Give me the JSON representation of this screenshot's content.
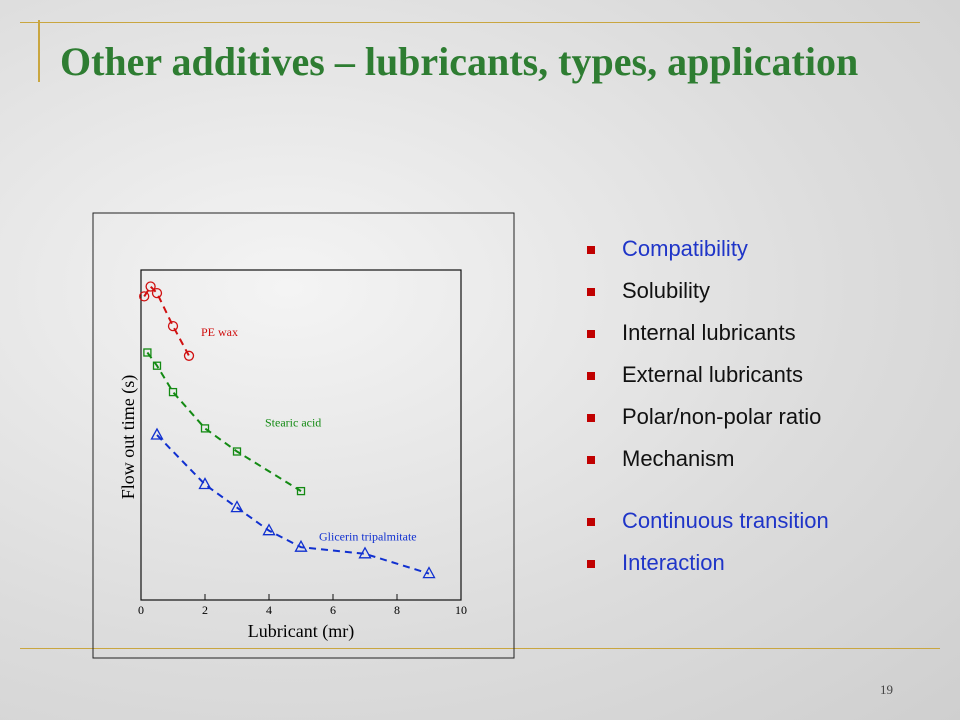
{
  "title": "Other additives – lubricants, types, application",
  "bullets": [
    {
      "text": "Compatibility",
      "color": "#1f35c8"
    },
    {
      "text": "Solubility",
      "color": "#111111"
    },
    {
      "text": "Internal lubricants",
      "color": "#111111"
    },
    {
      "text": "External lubricants",
      "color": "#111111"
    },
    {
      "text": "Polar/non-polar ratio",
      "color": "#111111"
    },
    {
      "text": "Mechanism",
      "color": "#111111"
    },
    {
      "text": "Continuous transition",
      "color": "#1f35c8"
    },
    {
      "text": "Interaction",
      "color": "#1f35c8"
    }
  ],
  "page_number": "19",
  "chart_data": {
    "type": "scatter",
    "x_label": "Lubricant (mr)",
    "y_label": "Flow out time (s)",
    "xlim": [
      0,
      10
    ],
    "xticks": [
      0,
      2,
      4,
      6,
      8,
      10
    ],
    "ylim": [
      0,
      100
    ],
    "series": [
      {
        "name": "PE wax",
        "color": "#d01010",
        "marker": "circle",
        "x": [
          0.1,
          0.3,
          0.5,
          1,
          1.5
        ],
        "values": [
          92,
          95,
          93,
          83,
          74
        ]
      },
      {
        "name": "Stearic acid",
        "color": "#138a13",
        "marker": "square",
        "x": [
          0.2,
          0.5,
          1,
          2,
          3,
          5
        ],
        "values": [
          75,
          71,
          63,
          52,
          45,
          33
        ]
      },
      {
        "name": "Glicerin tripalmitate",
        "color": "#1030d0",
        "marker": "triangle",
        "x": [
          0.5,
          2,
          3,
          4,
          5,
          7,
          9
        ],
        "values": [
          50,
          35,
          28,
          21,
          16,
          14,
          8
        ]
      }
    ]
  }
}
